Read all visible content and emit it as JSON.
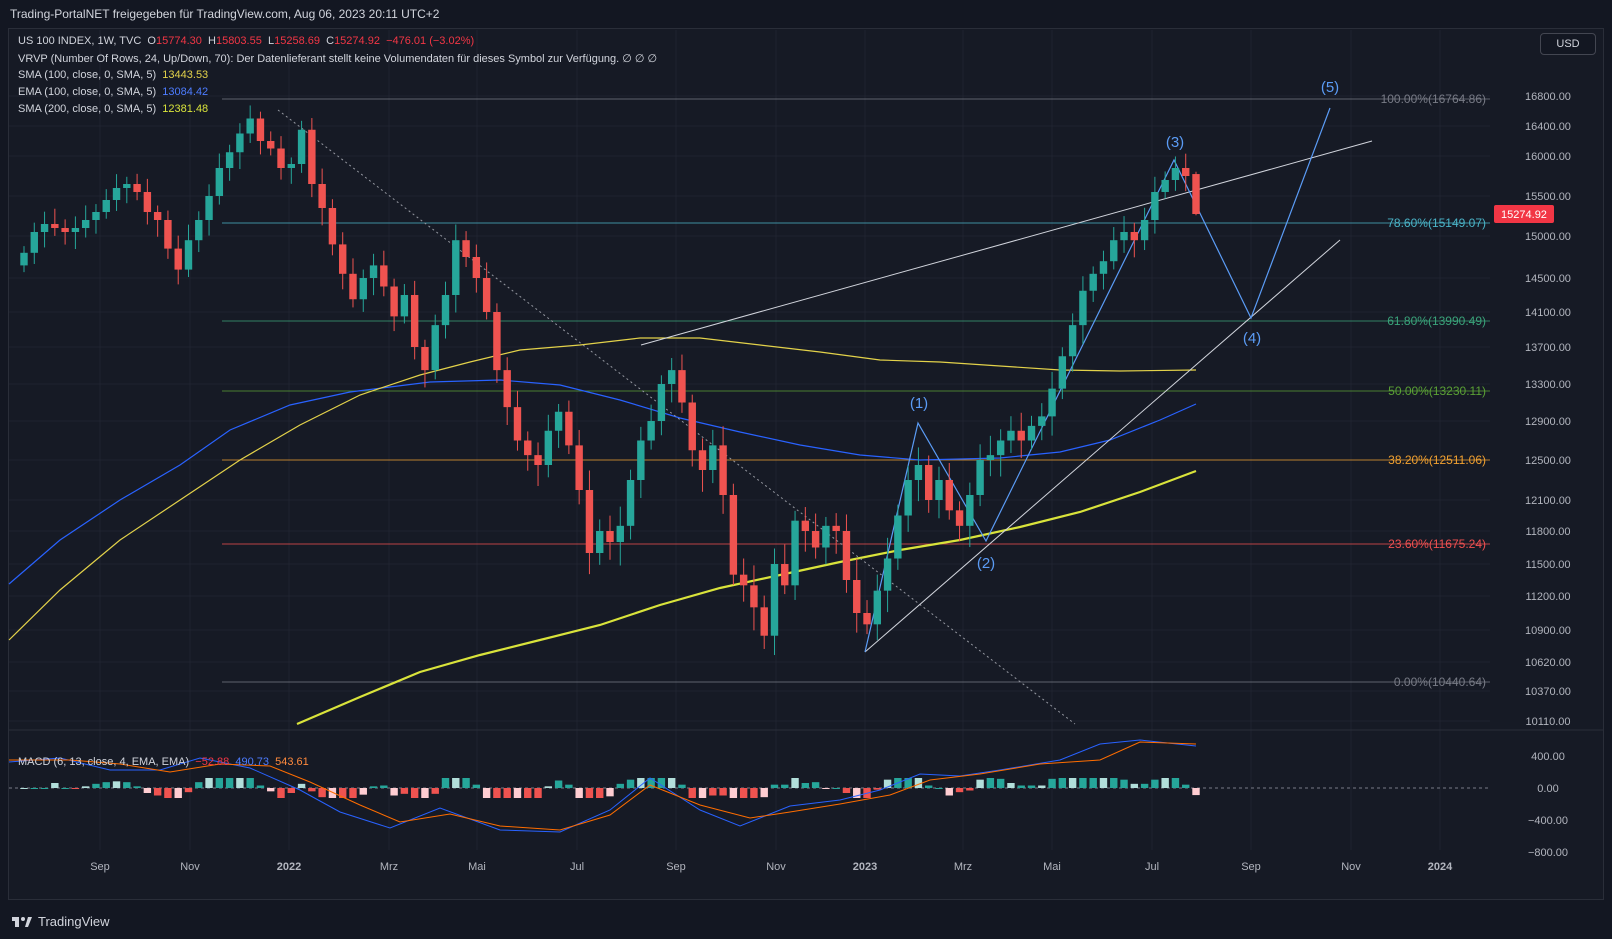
{
  "header": {
    "caption": "Trading-PortalNET freigegeben für TradingView.com, Aug 06, 2023 20:11 UTC+2"
  },
  "currency_button": "USD",
  "legend": {
    "symbol": "US 100 INDEX, 1W, TVC",
    "o_label": "O",
    "o": "15774.30",
    "h_label": "H",
    "h": "15803.55",
    "l_label": "L",
    "l": "15258.69",
    "c_label": "C",
    "c": "15274.92",
    "change": "−476.01 (−3.02%)",
    "vrvp": "VRVP (Number Of Rows, 24, Up/Down, 70): Der Datenlieferant stellt keine Volumendaten für dieses Symbol zur Verfügung.  ∅  ∅  ∅",
    "sma100": "SMA (100, close, 0, SMA, 5)",
    "sma100_val": "13443.53",
    "ema100": "EMA (100, close, 0, SMA, 5)",
    "ema100_val": "13084.42",
    "sma200": "SMA (200, close, 0, SMA, 5)",
    "sma200_val": "12381.48",
    "macd": "MACD (6, 13, close, 4, EMA, EMA)",
    "macd_hist": "−52.88",
    "macd_line": "490.73",
    "macd_signal": "543.61"
  },
  "colors": {
    "up": "#26a69a",
    "down": "#ef5350",
    "sma100": "#e3d24a",
    "ema100": "#2962ff",
    "sma200": "#d9e33b",
    "macd": "#2962ff",
    "signal": "#ff6d00"
  },
  "price_axis": [
    "16800.00",
    "16400.00",
    "16000.00",
    "15500.00",
    "15000.00",
    "14500.00",
    "14100.00",
    "13700.00",
    "13300.00",
    "12900.00",
    "12500.00",
    "12100.00",
    "11800.00",
    "11500.00",
    "11200.00",
    "10900.00",
    "10620.00",
    "10370.00",
    "10110.00"
  ],
  "current_price": "15274.92",
  "macd_axis": [
    "400.00",
    "0.00",
    "−400.00",
    "−800.00"
  ],
  "time_axis": [
    "Sep",
    "Nov",
    "2022",
    "Mrz",
    "Mai",
    "Jul",
    "Sep",
    "Nov",
    "2023",
    "Mrz",
    "Mai",
    "Jul",
    "Sep",
    "Nov",
    "2024"
  ],
  "fib_levels": [
    {
      "label": "100.00%(16764.86)",
      "color": "#787b86"
    },
    {
      "label": "78.60%(15149.07)",
      "color": "#4ab4c8"
    },
    {
      "label": "61.80%(13990.49)",
      "color": "#3aa37a"
    },
    {
      "label": "50.00%(13230.11)",
      "color": "#5aa035"
    },
    {
      "label": "38.20%(12511.06)",
      "color": "#f0a030"
    },
    {
      "label": "23.60%(11675.24)",
      "color": "#f05050"
    },
    {
      "label": "0.00%(10440.64)",
      "color": "#787b86"
    }
  ],
  "wave_labels": [
    "(1)",
    "(2)",
    "(3)",
    "(4)",
    "(5)"
  ],
  "chart_data": {
    "type": "candlestick",
    "symbol": "US 100 INDEX",
    "interval": "1W",
    "ohlc_last": {
      "open": 15774.3,
      "high": 15803.55,
      "low": 15258.69,
      "close": 15274.92,
      "change": -476.01,
      "change_pct": -3.02
    },
    "indicators": {
      "SMA100": 13443.53,
      "EMA100": 13084.42,
      "SMA200": 12381.48,
      "MACD_hist": -52.88,
      "MACD": 490.73,
      "Signal": 543.61
    },
    "fibonacci": [
      {
        "level": 1.0,
        "price": 16764.86
      },
      {
        "level": 0.786,
        "price": 15149.07
      },
      {
        "level": 0.618,
        "price": 13990.49
      },
      {
        "level": 0.5,
        "price": 13230.11
      },
      {
        "level": 0.382,
        "price": 12511.06
      },
      {
        "level": 0.236,
        "price": 11675.24
      },
      {
        "level": 0.0,
        "price": 10440.64
      }
    ],
    "y_range": [
      10110,
      16800
    ],
    "x_labels": [
      "Sep",
      "Nov",
      "2022",
      "Mrz",
      "Mai",
      "Jul",
      "Sep",
      "Nov",
      "2023",
      "Mrz",
      "Mai",
      "Jul",
      "Sep",
      "Nov",
      "2024"
    ],
    "candles_close_approx": [
      14800,
      15050,
      15150,
      15100,
      15050,
      15100,
      15200,
      15300,
      15450,
      15600,
      15650,
      15550,
      15300,
      15200,
      14850,
      14600,
      14950,
      15200,
      15500,
      15850,
      16050,
      16300,
      16500,
      16200,
      16100,
      15850,
      15900,
      16350,
      15650,
      15350,
      14900,
      14550,
      14250,
      14500,
      14650,
      14400,
      14050,
      14300,
      13700,
      13450,
      13950,
      14300,
      14950,
      14750,
      14500,
      14100,
      13450,
      13050,
      12700,
      12550,
      12450,
      12800,
      13000,
      12650,
      12200,
      11600,
      11800,
      11700,
      11850,
      12300,
      12700,
      12900,
      13300,
      13450,
      13100,
      12600,
      12400,
      12650,
      12150,
      11400,
      11300,
      11100,
      10850,
      11500,
      11300,
      11900,
      11800,
      11650,
      11850,
      11800,
      11350,
      11050,
      10950,
      11250,
      11550,
      11950,
      12300,
      12450,
      12100,
      12300,
      12000,
      11850,
      12150,
      12500,
      12550,
      12700,
      12800,
      12700,
      12850,
      12950,
      13250,
      13600,
      13950,
      14350,
      14550,
      14700,
      14950,
      15050,
      14950,
      15200,
      15550,
      15700,
      15850,
      15750,
      15274.92
    ]
  }
}
